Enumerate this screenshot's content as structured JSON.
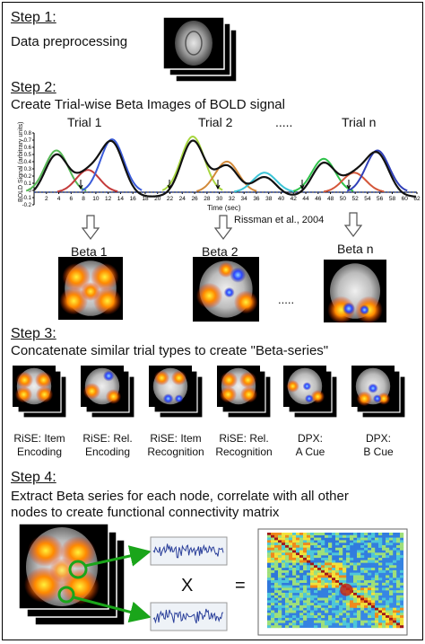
{
  "steps": [
    {
      "heading": "Step 1:",
      "text": "Data preprocessing"
    },
    {
      "heading": "Step 2:",
      "text": "Create Trial-wise Beta Images of BOLD signal"
    },
    {
      "heading": "Step 3:",
      "text": "Concatenate similar trial types to create \"Beta-series\""
    },
    {
      "heading": "Step 4:",
      "text": [
        "Extract Beta series for each node, correlate with all other",
        "nodes to create functional connectivity matrix"
      ]
    }
  ],
  "trials": [
    "Trial 1",
    "Trial 2",
    ".....",
    "Trial n"
  ],
  "bold_plot": {
    "ylabel": "BOLD Signal (arbitrary units)",
    "xlabel": "Time (sec)",
    "yticks": [
      "0.8",
      "0.7",
      "0.6",
      "0.5",
      "0.4",
      "0.3",
      "0.2",
      "0.1",
      "0",
      "-0.1",
      "-0.2"
    ],
    "xticks": [
      "2",
      "4",
      "6",
      "8",
      "10",
      "12",
      "14",
      "16",
      "18",
      "20",
      "22",
      "24",
      "26",
      "28",
      "30",
      "32",
      "34",
      "36",
      "38",
      "40",
      "42",
      "44",
      "46",
      "48",
      "50",
      "52",
      "54",
      "56",
      "58",
      "60",
      "62"
    ],
    "citation": "Rissman et al., 2004"
  },
  "betas": [
    "Beta 1",
    "Beta 2",
    "Beta n"
  ],
  "beta_ellipsis": ".....",
  "conditions": [
    [
      "RiSE: Item",
      "Encoding"
    ],
    [
      "RiSE: Rel.",
      "Encoding"
    ],
    [
      "RiSE: Item",
      "Recognition"
    ],
    [
      "RiSE: Rel.",
      "Recognition"
    ],
    [
      "DPX:",
      "A Cue"
    ],
    [
      "DPX:",
      "B Cue"
    ]
  ],
  "operators": {
    "times": "X",
    "equals": "="
  },
  "colors": {
    "brain_bg": "#000000",
    "activation": "#ff6a00",
    "deactivation": "#3a5bff",
    "arrow_green": "#1aa51a",
    "matrix_bg": "#2e7fd9"
  }
}
